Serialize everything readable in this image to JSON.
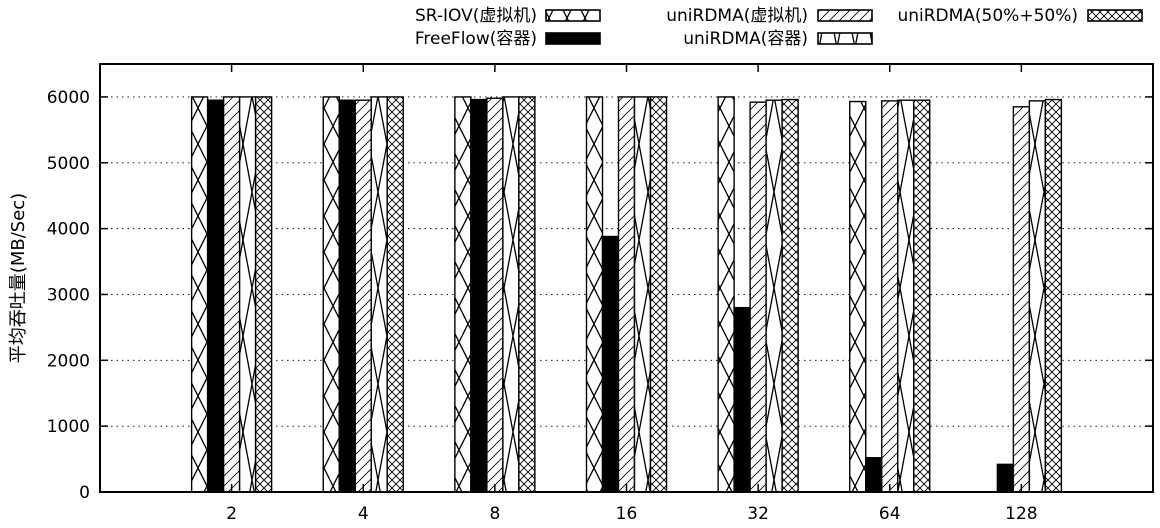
{
  "chart_data": {
    "type": "bar",
    "title": "",
    "xlabel": "",
    "ylabel": "平均吞吐量(MB/Sec)",
    "ylim": [
      0,
      6000
    ],
    "yticks": [
      0,
      1000,
      2000,
      3000,
      4000,
      5000,
      6000
    ],
    "categories": [
      "2",
      "4",
      "8",
      "16",
      "32",
      "64",
      "128"
    ],
    "grid": "dotted horizontal",
    "legend_position": "top",
    "series": [
      {
        "name": "SR-IOV(虚拟机)",
        "pattern": "cross",
        "values": [
          6000,
          6000,
          6000,
          6000,
          6000,
          5930,
          null
        ]
      },
      {
        "name": "FreeFlow(容器)",
        "pattern": "solid",
        "values": [
          5950,
          5950,
          5960,
          3880,
          2800,
          520,
          420
        ]
      },
      {
        "name": "uniRDMA(虚拟机)",
        "pattern": "hatch",
        "values": [
          6000,
          5950,
          5980,
          6000,
          5920,
          5940,
          5850
        ]
      },
      {
        "name": "uniRDMA(容器)",
        "pattern": "chevron",
        "values": [
          6000,
          6000,
          6000,
          6000,
          5950,
          5950,
          5940
        ]
      },
      {
        "name": "uniRDMA(50%+50%)",
        "pattern": "crosshatch",
        "values": [
          6000,
          6000,
          6000,
          6000,
          5960,
          5950,
          5960
        ]
      }
    ]
  }
}
